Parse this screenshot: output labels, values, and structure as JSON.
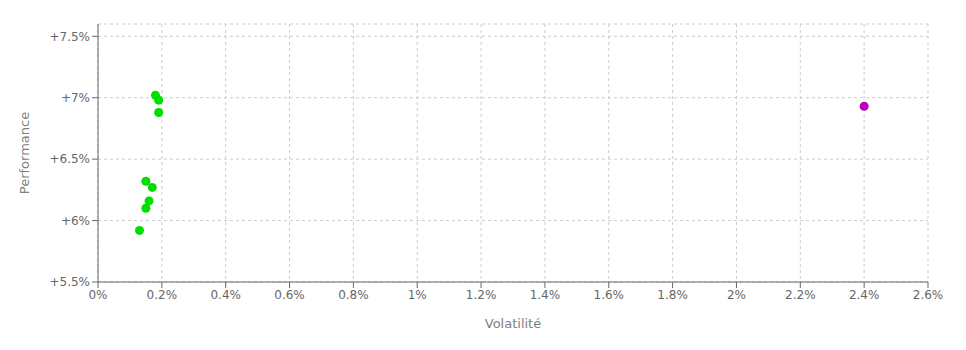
{
  "chart_data": {
    "type": "scatter",
    "xlabel": "Volatilité",
    "ylabel": "Performance",
    "series": [
      {
        "color": "#00dd00",
        "x": [
          0.0018,
          0.0019,
          0.0019,
          0.0015,
          0.0017,
          0.0016,
          0.0015,
          0.0013
        ],
        "values": [
          0.0702,
          0.0698,
          0.0688,
          0.0632,
          0.0627,
          0.0616,
          0.061,
          0.0592
        ]
      },
      {
        "color": "#bb00bb",
        "x": [
          0.024
        ],
        "values": [
          0.0693
        ]
      }
    ],
    "xlim": [
      0.0,
      0.026
    ],
    "ylim": [
      0.055,
      0.076
    ],
    "xticks": [
      {
        "value": 0.0,
        "label": "0%"
      },
      {
        "value": 0.002,
        "label": "0.2%"
      },
      {
        "value": 0.004,
        "label": "0.4%"
      },
      {
        "value": 0.006,
        "label": "0.6%"
      },
      {
        "value": 0.008,
        "label": "0.8%"
      },
      {
        "value": 0.01,
        "label": "1%"
      },
      {
        "value": 0.012,
        "label": "1.2%"
      },
      {
        "value": 0.014,
        "label": "1.4%"
      },
      {
        "value": 0.016,
        "label": "1.6%"
      },
      {
        "value": 0.018,
        "label": "1.8%"
      },
      {
        "value": 0.02,
        "label": "2%"
      },
      {
        "value": 0.022,
        "label": "2.2%"
      },
      {
        "value": 0.024,
        "label": "2.4%"
      },
      {
        "value": 0.026,
        "label": "2.6%"
      }
    ],
    "yticks": [
      {
        "value": 0.055,
        "label": "+5.5%"
      },
      {
        "value": 0.06,
        "label": "+6%"
      },
      {
        "value": 0.065,
        "label": "+6.5%"
      },
      {
        "value": 0.07,
        "label": "+7%"
      },
      {
        "value": 0.075,
        "label": "+7.5%"
      }
    ],
    "grid": true
  }
}
